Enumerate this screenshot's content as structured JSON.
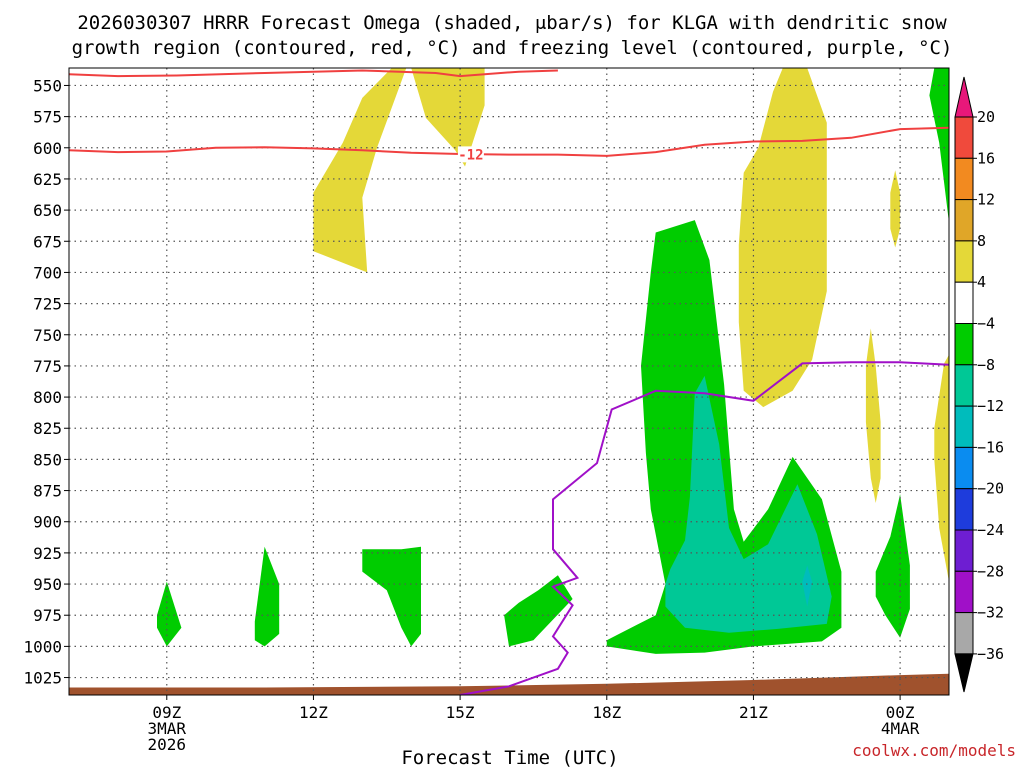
{
  "chart_data": {
    "type": "time-height cross-section",
    "title_line1": "2026030307 HRRR Forecast Omega (shaded, μbar/s) for KLGA with dendritic snow",
    "title_line2": "growth region (contoured, red, °C) and freezing level (contoured, purple, °C)",
    "xlabel": "Forecast Time (UTC)",
    "credit": "coolwx.com/models",
    "x_range_hours": [
      7,
      25
    ],
    "y_range_mb": [
      1039,
      536
    ],
    "y_ticks": [
      550,
      575,
      600,
      625,
      650,
      675,
      700,
      725,
      750,
      775,
      800,
      825,
      850,
      875,
      900,
      925,
      950,
      975,
      1000,
      1025
    ],
    "x_ticks": [
      {
        "hour": 9,
        "lines": [
          "09Z",
          "3MAR",
          "2026"
        ]
      },
      {
        "hour": 12,
        "lines": [
          "12Z"
        ]
      },
      {
        "hour": 15,
        "lines": [
          "15Z"
        ]
      },
      {
        "hour": 18,
        "lines": [
          "18Z"
        ]
      },
      {
        "hour": 21,
        "lines": [
          "21Z"
        ]
      },
      {
        "hour": 24,
        "lines": [
          "00Z",
          "4MAR"
        ]
      }
    ],
    "colorbar": {
      "labels": [
        "20",
        "16",
        "12",
        "8",
        "4",
        "−4",
        "−8",
        "−12",
        "−16",
        "−20",
        "−24",
        "−28",
        "−32",
        "−36"
      ],
      "colors": [
        "#e8187a",
        "#f04a3c",
        "#f28a20",
        "#e0a628",
        "#e4d838",
        "#ffffff",
        "#00cc00",
        "#00c896",
        "#00bcbc",
        "#0a8cf0",
        "#1e3cdc",
        "#6e1ed2",
        "#a010c8",
        "#a8a8a8",
        "#000000"
      ]
    },
    "omega_colors": {
      "yellow": "#e4d838",
      "green": "#00cc00",
      "teal": "#00c896",
      "cyan": "#00bcbc"
    },
    "contour_colors": {
      "dgz": "#f04040",
      "freezing": "#a010c8",
      "terrain": "#a0522d"
    },
    "contour_label": "-12",
    "dgz_upper": [
      [
        7,
        541
      ],
      [
        8,
        542.5
      ],
      [
        9.2,
        542
      ],
      [
        11,
        540
      ],
      [
        13,
        538
      ],
      [
        14.5,
        540
      ],
      [
        15,
        542.5
      ],
      [
        16.2,
        539
      ],
      [
        17,
        538
      ]
    ],
    "dgz_lower": [
      [
        7,
        602
      ],
      [
        8,
        603.5
      ],
      [
        9,
        603
      ],
      [
        10,
        600
      ],
      [
        11,
        599.5
      ],
      [
        12,
        600.5
      ],
      [
        13,
        602
      ],
      [
        14,
        604
      ],
      [
        15,
        605
      ],
      [
        16,
        605.5
      ],
      [
        17,
        605.5
      ],
      [
        18,
        606.5
      ],
      [
        19,
        603.5
      ],
      [
        20,
        597.5
      ],
      [
        21,
        595
      ],
      [
        22,
        594.5
      ],
      [
        23,
        592
      ],
      [
        24,
        585
      ],
      [
        25,
        584
      ]
    ],
    "freezing_level": [
      [
        15,
        1039
      ],
      [
        16,
        1032
      ],
      [
        17,
        1018
      ],
      [
        17.2,
        1005
      ],
      [
        16.9,
        992
      ],
      [
        17.3,
        967
      ],
      [
        16.9,
        952
      ],
      [
        17.4,
        945
      ],
      [
        16.9,
        922
      ],
      [
        16.9,
        882
      ],
      [
        17.8,
        853
      ],
      [
        18.1,
        810
      ],
      [
        19,
        795
      ],
      [
        20,
        797
      ],
      [
        21,
        803
      ],
      [
        22,
        773
      ],
      [
        23,
        772
      ],
      [
        24,
        772
      ],
      [
        25,
        774
      ]
    ],
    "terrain": [
      [
        7,
        1033
      ],
      [
        11,
        1033
      ],
      [
        15,
        1032
      ],
      [
        18,
        1030
      ],
      [
        21,
        1027
      ],
      [
        24,
        1023
      ],
      [
        25,
        1022
      ]
    ],
    "omega_regions": [
      {
        "color": "yellow",
        "points": [
          [
            12,
            636
          ],
          [
            12.6,
            596
          ],
          [
            13,
            560
          ],
          [
            13.6,
            536
          ],
          [
            14,
            536
          ],
          [
            14.3,
            576
          ],
          [
            14.9,
            602
          ],
          [
            15.1,
            615
          ],
          [
            15.5,
            566
          ],
          [
            15.5,
            536
          ],
          [
            13.9,
            536
          ],
          [
            13.3,
            600
          ],
          [
            13,
            640
          ],
          [
            13.1,
            700
          ],
          [
            12,
            683
          ]
        ]
      },
      {
        "color": "yellow",
        "points": [
          [
            20.7,
            678
          ],
          [
            20.8,
            620
          ],
          [
            21.1,
            600
          ],
          [
            21.4,
            555
          ],
          [
            21.6,
            536
          ],
          [
            22.1,
            536
          ],
          [
            22.5,
            580
          ],
          [
            22.5,
            650
          ],
          [
            22.5,
            715
          ],
          [
            22.2,
            770
          ],
          [
            21.8,
            795
          ],
          [
            21.2,
            808
          ],
          [
            20.8,
            795
          ],
          [
            20.7,
            740
          ]
        ]
      },
      {
        "color": "yellow",
        "points": [
          [
            23.8,
            636
          ],
          [
            23.9,
            618
          ],
          [
            24,
            636
          ],
          [
            24,
            665
          ],
          [
            23.9,
            680
          ],
          [
            23.8,
            665
          ]
        ]
      },
      {
        "color": "yellow",
        "points": [
          [
            23.3,
            775
          ],
          [
            23.4,
            745
          ],
          [
            23.5,
            775
          ],
          [
            23.6,
            820
          ],
          [
            23.6,
            865
          ],
          [
            23.5,
            885
          ],
          [
            23.4,
            865
          ],
          [
            23.3,
            820
          ]
        ]
      },
      {
        "color": "yellow",
        "points": [
          [
            24.7,
            825
          ],
          [
            24.9,
            773
          ],
          [
            25,
            766
          ],
          [
            25,
            948
          ],
          [
            24.8,
            905
          ],
          [
            24.7,
            850
          ]
        ]
      },
      {
        "color": "green",
        "points": [
          [
            24.7,
            536
          ],
          [
            25,
            536
          ],
          [
            25,
            660
          ],
          [
            24.8,
            596
          ],
          [
            24.6,
            558
          ]
        ]
      },
      {
        "color": "green",
        "points": [
          [
            18,
            995
          ],
          [
            19,
            975
          ],
          [
            19.2,
            950
          ],
          [
            18.9,
            890
          ],
          [
            18.8,
            845
          ],
          [
            18.7,
            775
          ],
          [
            18.9,
            700
          ],
          [
            19,
            668
          ],
          [
            19.8,
            658
          ],
          [
            20.1,
            690
          ],
          [
            20.4,
            790
          ],
          [
            20.6,
            890
          ],
          [
            20.8,
            916
          ],
          [
            21.3,
            890
          ],
          [
            21.8,
            848
          ],
          [
            22.4,
            882
          ],
          [
            22.8,
            940
          ],
          [
            22.8,
            985
          ],
          [
            22.4,
            996
          ],
          [
            21,
            1000
          ],
          [
            20,
            1005
          ],
          [
            19,
            1006
          ],
          [
            18,
            1000
          ]
        ]
      },
      {
        "color": "teal",
        "points": [
          [
            19.2,
            950
          ],
          [
            19.3,
            938
          ],
          [
            19.6,
            915
          ],
          [
            19.7,
            880
          ],
          [
            19.8,
            797
          ],
          [
            20,
            783
          ],
          [
            20.3,
            838
          ],
          [
            20.5,
            905
          ],
          [
            20.8,
            930
          ],
          [
            21.3,
            918
          ],
          [
            21.9,
            870
          ],
          [
            22.3,
            910
          ],
          [
            22.6,
            960
          ],
          [
            22.5,
            982
          ],
          [
            21.5,
            986
          ],
          [
            20.5,
            989
          ],
          [
            19.6,
            985
          ],
          [
            19.2,
            968
          ]
        ]
      },
      {
        "color": "cyan",
        "points": [
          [
            22,
            948
          ],
          [
            22.1,
            935
          ],
          [
            22.2,
            948
          ],
          [
            22.1,
            968
          ]
        ]
      },
      {
        "color": "green",
        "points": [
          [
            8.8,
            975
          ],
          [
            9,
            948
          ],
          [
            9.3,
            985
          ],
          [
            9,
            1000
          ],
          [
            8.8,
            985
          ]
        ]
      },
      {
        "color": "green",
        "points": [
          [
            10.8,
            980
          ],
          [
            11,
            920
          ],
          [
            11.3,
            950
          ],
          [
            11.3,
            990
          ],
          [
            11,
            1000
          ],
          [
            10.8,
            995
          ]
        ]
      },
      {
        "color": "green",
        "points": [
          [
            13,
            922
          ],
          [
            13.8,
            922
          ],
          [
            14.2,
            920
          ],
          [
            14.2,
            990
          ],
          [
            14,
            1000
          ],
          [
            13.8,
            985
          ],
          [
            13.5,
            955
          ],
          [
            13,
            940
          ]
        ]
      },
      {
        "color": "green",
        "points": [
          [
            15.9,
            975
          ],
          [
            16.2,
            965
          ],
          [
            16.6,
            955
          ],
          [
            17,
            943
          ],
          [
            17.3,
            962
          ],
          [
            16.5,
            995
          ],
          [
            16,
            1000
          ]
        ]
      },
      {
        "color": "green",
        "points": [
          [
            23.5,
            940
          ],
          [
            23.8,
            912
          ],
          [
            24,
            878
          ],
          [
            24.2,
            935
          ],
          [
            24.2,
            970
          ],
          [
            24,
            993
          ],
          [
            23.7,
            975
          ],
          [
            23.5,
            960
          ]
        ]
      }
    ]
  }
}
